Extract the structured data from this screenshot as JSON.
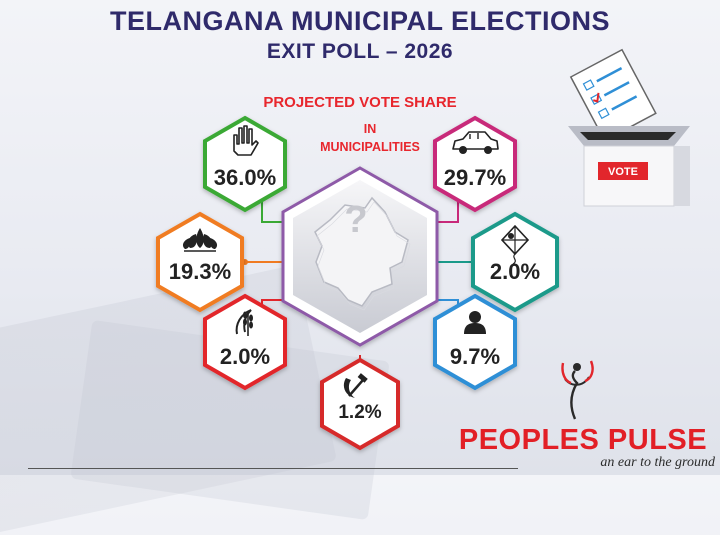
{
  "header": {
    "title_line1": "TELANGANA MUNICIPAL ELECTIONS",
    "title_line2": "EXIT POLL – 2026"
  },
  "subtitle": {
    "line1": "PROJECTED VOTE SHARE",
    "line2": "IN",
    "line3": "MUNICIPALITIES"
  },
  "parties": [
    {
      "id": "congress",
      "icon": "hand-icon",
      "value": "36.0%",
      "color": "#3aa935"
    },
    {
      "id": "brs",
      "icon": "car-icon",
      "value": "29.7%",
      "color": "#c8297a"
    },
    {
      "id": "bjp",
      "icon": "lotus-icon",
      "value": "19.3%",
      "color": "#f07b22"
    },
    {
      "id": "aimim",
      "icon": "kite-icon",
      "value": "2.0%",
      "color": "#1a9a8a"
    },
    {
      "id": "cpi",
      "icon": "wheat-sickle-icon",
      "value": "2.0%",
      "color": "#e2262c"
    },
    {
      "id": "others",
      "icon": "person-icon",
      "value": "9.7%",
      "color": "#2f8fd6"
    },
    {
      "id": "cpm",
      "icon": "hammer-sickle-icon",
      "value": "1.2%",
      "color": "#d62a2a"
    }
  ],
  "ballot_box": {
    "label": "VOTE"
  },
  "brand": {
    "name": "PEOPLES PULSE",
    "tagline": "an ear to the ground"
  }
}
